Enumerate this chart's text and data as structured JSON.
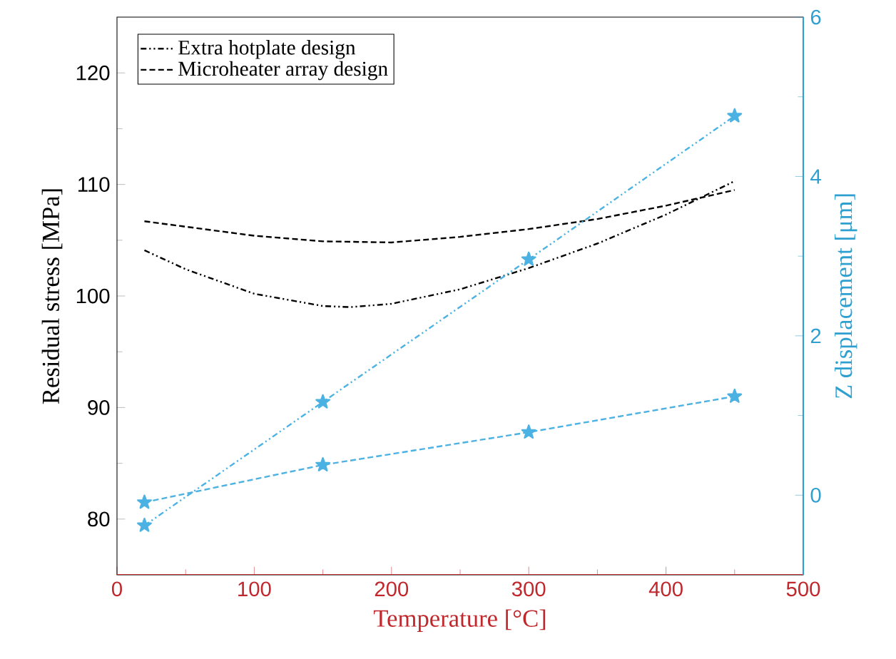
{
  "chart_data": {
    "type": "line",
    "xlabel": "Temperature [°C]",
    "ylabel": "Residual stress [MPa]",
    "y2label": "Z displacement [μm]",
    "xlim": [
      0,
      500
    ],
    "xticks": [
      0,
      100,
      200,
      300,
      400,
      500
    ],
    "ylim": [
      75,
      125
    ],
    "yticks": [
      80,
      90,
      100,
      110,
      120
    ],
    "y2lim": [
      -1,
      6
    ],
    "y2ticks": [
      0,
      2,
      4,
      6
    ],
    "legend": "top left",
    "grid": false,
    "series": [
      {
        "name": "Extra hotplate design",
        "color": "#000000",
        "line_style": "dashdot",
        "marker": "none",
        "x": [
          20,
          50,
          100,
          150,
          170,
          200,
          250,
          300,
          350,
          400,
          450
        ],
        "values": [
          104.1,
          102.4,
          100.2,
          99.1,
          99.0,
          99.3,
          100.6,
          102.5,
          104.7,
          107.3,
          110.3
        ]
      },
      {
        "name": "Microheater array design",
        "color": "#000000",
        "line_style": "dashed",
        "marker": "none",
        "x": [
          20,
          100,
          150,
          200,
          250,
          300,
          350,
          400,
          450
        ],
        "values": [
          106.7,
          105.4,
          104.9,
          104.8,
          105.3,
          106.0,
          106.9,
          108.1,
          109.5
        ]
      },
      {
        "color": "#4bb2e3",
        "line_style": "dashdot",
        "marker": "star",
        "axis": "y2",
        "x": [
          20,
          150,
          300,
          450
        ],
        "values": [
          -0.38,
          1.17,
          2.96,
          4.76
        ]
      },
      {
        "color": "#4bb2e3",
        "line_style": "dashed",
        "marker": "star",
        "axis": "y2",
        "x": [
          20,
          150,
          300,
          450
        ],
        "values": [
          -0.09,
          0.38,
          0.79,
          1.24
        ]
      }
    ]
  }
}
